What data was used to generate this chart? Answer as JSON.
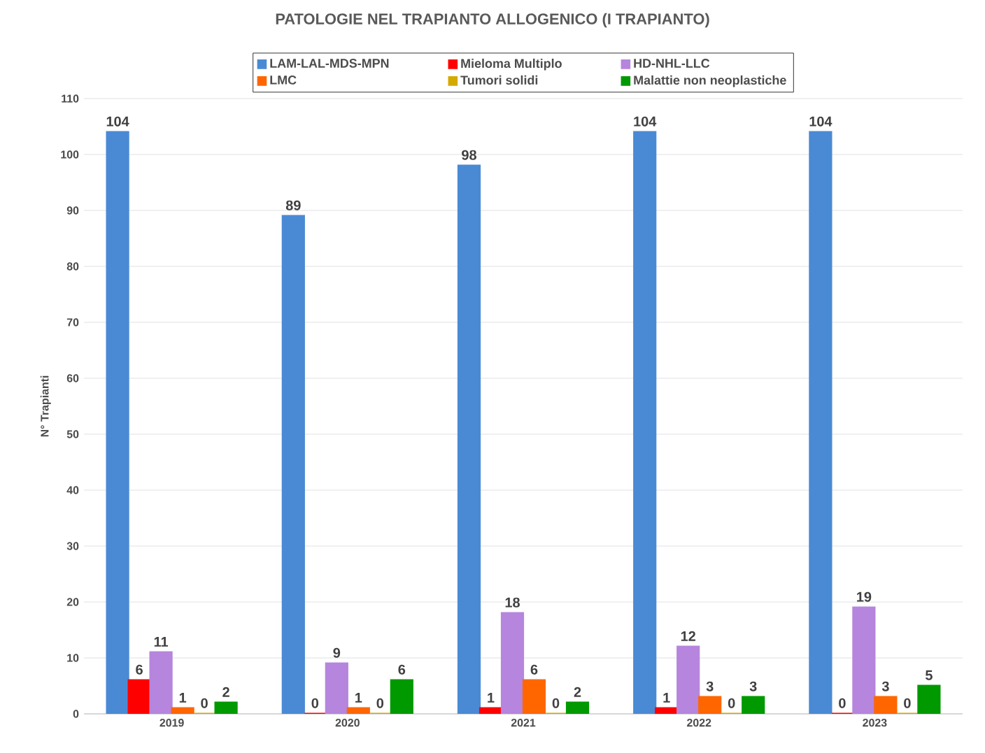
{
  "chart_data": {
    "type": "bar",
    "title": "PATOLOGIE NEL TRAPIANTO ALLOGENICO (I TRAPIANTO)",
    "ylabel": "N° Trapianti",
    "categories": [
      "2019",
      "2020",
      "2021",
      "2022",
      "2023"
    ],
    "series": [
      {
        "name": "LAM-LAL-MDS-MPN",
        "color": "#4a8ad4",
        "values": [
          104,
          89,
          98,
          104,
          104
        ]
      },
      {
        "name": "Mieloma Multiplo",
        "color": "#ff0000",
        "values": [
          6,
          0,
          1,
          1,
          0
        ]
      },
      {
        "name": "HD-NHL-LLC",
        "color": "#b685dd",
        "values": [
          11,
          9,
          18,
          12,
          19
        ]
      },
      {
        "name": "LMC",
        "color": "#ff6600",
        "values": [
          1,
          1,
          6,
          3,
          3
        ]
      },
      {
        "name": "Tumori solidi",
        "color": "#d4a900",
        "values": [
          0,
          0,
          0,
          0,
          0
        ]
      },
      {
        "name": "Malattie non neoplastiche",
        "color": "#009900",
        "values": [
          2,
          6,
          2,
          3,
          5
        ]
      }
    ],
    "ylim": [
      0,
      110
    ],
    "yticks": [
      0,
      10,
      20,
      30,
      40,
      50,
      60,
      70,
      80,
      90,
      100,
      110
    ],
    "grid": "y",
    "legend": "top",
    "data_labels": true
  }
}
